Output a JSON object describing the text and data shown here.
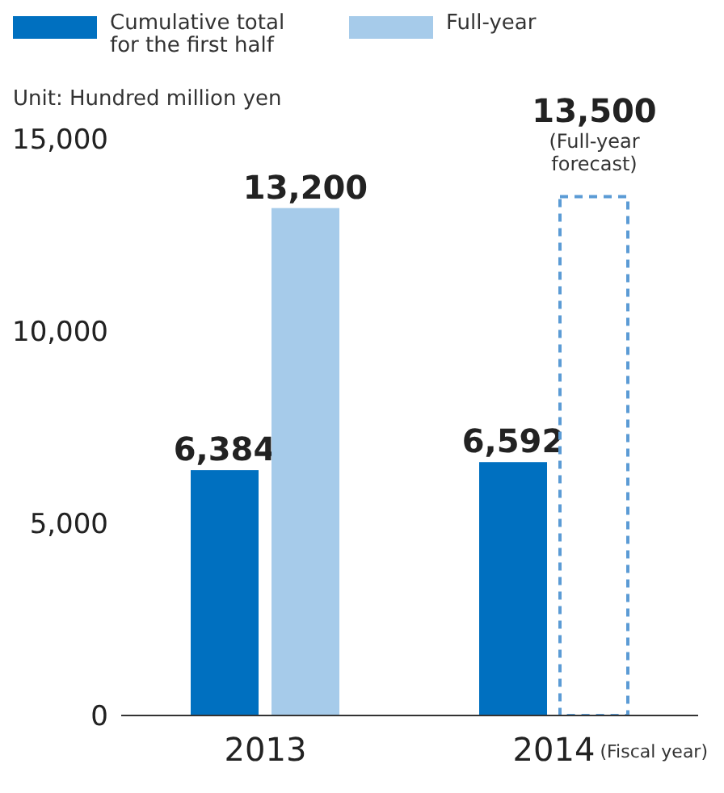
{
  "chart_data": {
    "type": "bar",
    "categories": [
      "2013",
      "2014"
    ],
    "series": [
      {
        "name": "Cumulative total for the first half",
        "color": "#0070c0",
        "values": [
          6384,
          6592
        ],
        "value_labels": [
          "6,384",
          "6,592"
        ]
      },
      {
        "name": "Full-year",
        "color": "#a6cbea",
        "values": [
          13200,
          null
        ],
        "value_labels": [
          "13,200",
          null
        ]
      },
      {
        "color": "#5b9bd5",
        "line_style": "dashed",
        "values": [
          null,
          13500
        ],
        "value_labels": [
          null,
          "13,500"
        ]
      }
    ],
    "ylabel": "Unit: Hundred million yen",
    "xlabel": "(Fiscal year)",
    "ylim": [
      0,
      15000
    ],
    "yticks": [
      0,
      {
        "value": 5000,
        "label": "5,000"
      },
      {
        "value": 10000,
        "label": "10,000"
      },
      {
        "value": 15000,
        "label": "15,000"
      }
    ],
    "annotations": [
      {
        "text": "(Full-year forecast)",
        "x": "2014",
        "y": 13500
      }
    ],
    "legend": "top left"
  }
}
